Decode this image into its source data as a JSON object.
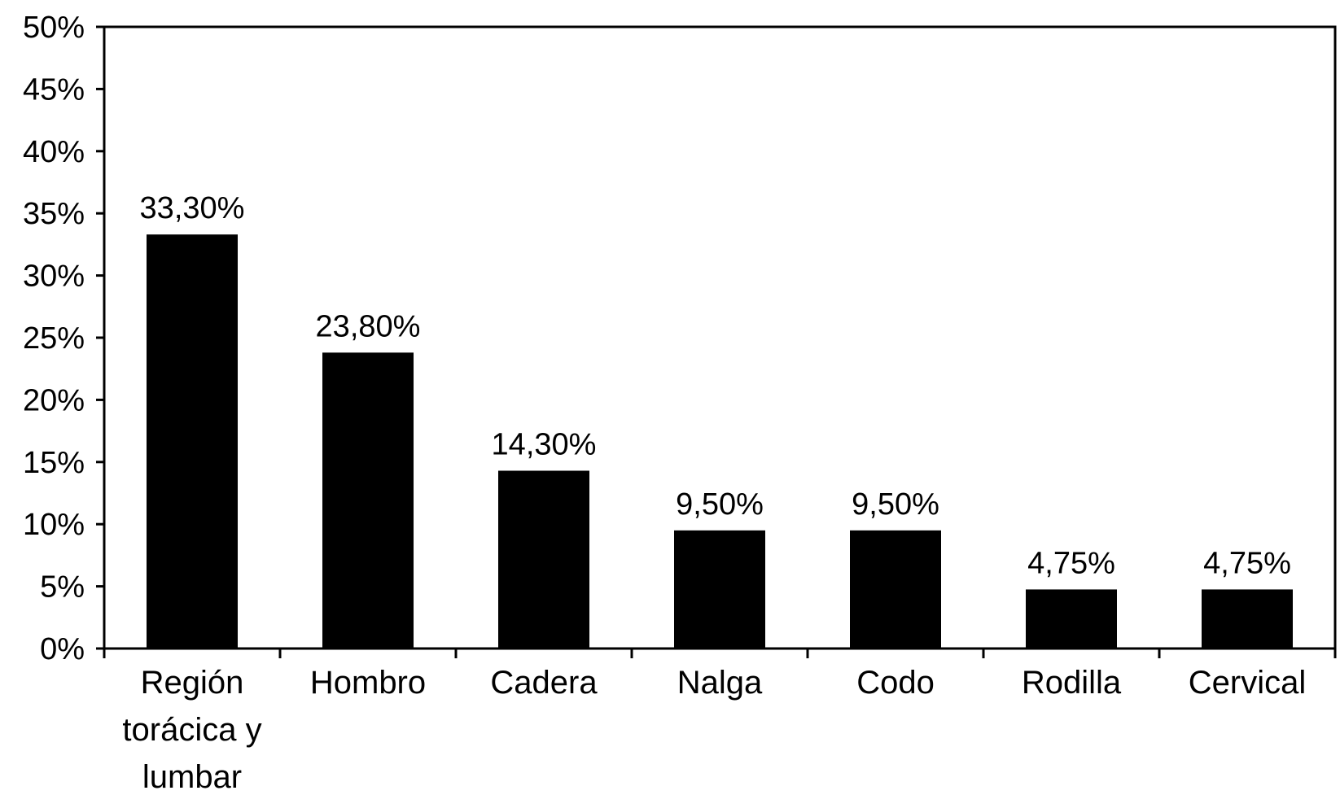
{
  "chart_data": {
    "type": "bar",
    "title": "",
    "xlabel": "",
    "ylabel": "",
    "ylim": [
      0,
      50
    ],
    "yticks": [
      {
        "value": 0,
        "label": "0%"
      },
      {
        "value": 5,
        "label": "5%"
      },
      {
        "value": 10,
        "label": "10%"
      },
      {
        "value": 15,
        "label": "15%"
      },
      {
        "value": 20,
        "label": "20%"
      },
      {
        "value": 25,
        "label": "25%"
      },
      {
        "value": 30,
        "label": "30%"
      },
      {
        "value": 35,
        "label": "35%"
      },
      {
        "value": 40,
        "label": "40%"
      },
      {
        "value": 45,
        "label": "45%"
      },
      {
        "value": 50,
        "label": "50%"
      }
    ],
    "categories": [
      [
        "Región",
        "torácica y",
        "lumbar"
      ],
      [
        "Hombro"
      ],
      [
        "Cadera"
      ],
      [
        "Nalga"
      ],
      [
        "Codo"
      ],
      [
        "Rodilla"
      ],
      [
        "Cervical"
      ]
    ],
    "values": [
      33.3,
      23.8,
      14.3,
      9.5,
      9.5,
      4.75,
      4.75
    ],
    "data_labels": [
      "33,30%",
      "23,80%",
      "14,30%",
      "9,50%",
      "9,50%",
      "4,75%",
      "4,75%"
    ],
    "grid": false,
    "legend": "none",
    "bar_color": "#000000"
  }
}
